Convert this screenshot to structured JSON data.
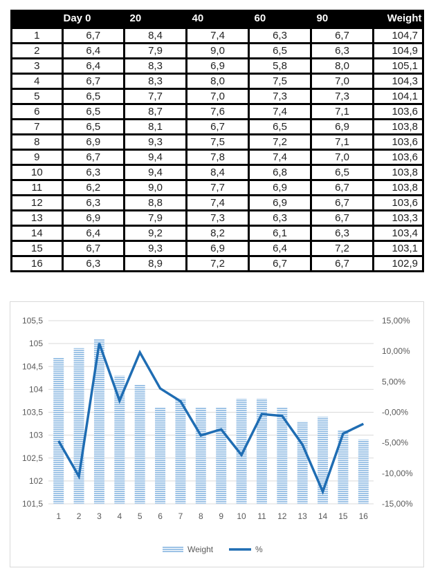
{
  "table": {
    "headers": [
      "Day 0",
      "20",
      "40",
      "60",
      "90",
      "Weight"
    ],
    "rows": [
      [
        "1",
        "6,7",
        "8,4",
        "7,4",
        "6,3",
        "6,7",
        "104,7"
      ],
      [
        "2",
        "6,4",
        "7,9",
        "9,0",
        "6,5",
        "6,3",
        "104,9"
      ],
      [
        "3",
        "6,4",
        "8,3",
        "6,9",
        "5,8",
        "8,0",
        "105,1"
      ],
      [
        "4",
        "6,7",
        "8,3",
        "8,0",
        "7,5",
        "7,0",
        "104,3"
      ],
      [
        "5",
        "6,5",
        "7,7",
        "7,0",
        "7,3",
        "7,3",
        "104,1"
      ],
      [
        "6",
        "6,5",
        "8,7",
        "7,6",
        "7,4",
        "7,1",
        "103,6"
      ],
      [
        "7",
        "6,5",
        "8,1",
        "6,7",
        "6,5",
        "6,9",
        "103,8"
      ],
      [
        "8",
        "6,9",
        "9,3",
        "7,5",
        "7,2",
        "7,1",
        "103,6"
      ],
      [
        "9",
        "6,7",
        "9,4",
        "7,8",
        "7,4",
        "7,0",
        "103,6"
      ],
      [
        "10",
        "6,3",
        "9,4",
        "8,4",
        "6,8",
        "6,5",
        "103,8"
      ],
      [
        "11",
        "6,2",
        "9,0",
        "7,7",
        "6,9",
        "6,7",
        "103,8"
      ],
      [
        "12",
        "6,3",
        "8,8",
        "7,4",
        "6,9",
        "6,7",
        "103,6"
      ],
      [
        "13",
        "6,9",
        "7,9",
        "7,3",
        "6,3",
        "6,7",
        "103,3"
      ],
      [
        "14",
        "6,4",
        "9,2",
        "8,2",
        "6,1",
        "6,3",
        "103,4"
      ],
      [
        "15",
        "6,7",
        "9,3",
        "6,9",
        "6,4",
        "7,2",
        "103,1"
      ],
      [
        "16",
        "6,3",
        "8,9",
        "7,2",
        "6,7",
        "6,7",
        "102,9"
      ]
    ]
  },
  "chart_data": {
    "type": "bar",
    "combo": "bar + line (secondary axis)",
    "title": "",
    "categories": [
      "1",
      "2",
      "3",
      "4",
      "5",
      "6",
      "7",
      "8",
      "9",
      "10",
      "11",
      "12",
      "13",
      "14",
      "15",
      "16"
    ],
    "series": [
      {
        "name": "Weight",
        "type": "bar",
        "axis": "left",
        "color": "#9dc3e6",
        "values": [
          104.7,
          104.9,
          105.1,
          104.3,
          104.1,
          103.6,
          103.8,
          103.6,
          103.6,
          103.8,
          103.8,
          103.6,
          103.3,
          103.4,
          103.1,
          102.9
        ]
      },
      {
        "name": "%",
        "type": "line",
        "axis": "right",
        "color": "#1f6db3",
        "values": [
          -4.7,
          -10.5,
          11.3,
          1.9,
          9.8,
          3.9,
          1.8,
          -3.8,
          -2.8,
          -7.0,
          -0.3,
          -0.6,
          -5.3,
          -13.0,
          -3.5,
          -1.9
        ]
      }
    ],
    "left_axis": {
      "min": 101.5,
      "max": 105.5,
      "step": 0.5,
      "tick_labels": [
        "105,5",
        "105",
        "104,5",
        "104",
        "103,5",
        "103",
        "102,5",
        "102",
        "101,5"
      ]
    },
    "right_axis": {
      "min": -15,
      "max": 15,
      "step": 5,
      "unit": "%",
      "tick_labels": [
        "15,00%",
        "10,00%",
        "5,00%",
        "-0,00%",
        "-5,00%",
        "-10,00%",
        "-15,00%"
      ]
    },
    "grid": true,
    "legend": {
      "position": "bottom",
      "entries": [
        "Weight",
        "%"
      ]
    }
  }
}
